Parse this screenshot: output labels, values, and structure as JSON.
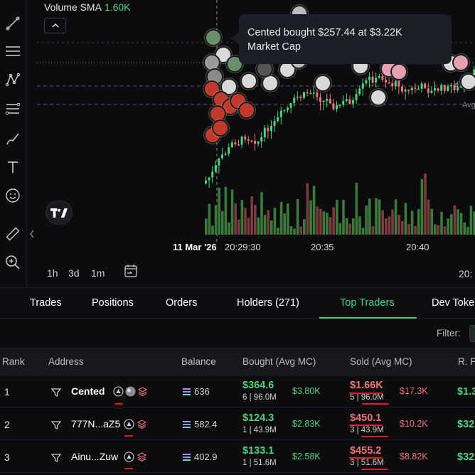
{
  "chart": {
    "volume_label": "Volume SMA",
    "volume_value": "1.60K",
    "tooltip_line1": "Cented bought $257.44 at $3.22K",
    "tooltip_line2": "Market Cap",
    "time_labels": [
      "11 Mar '26",
      "20:29:30",
      "20:35",
      "20:40"
    ],
    "right_time_label": "20:",
    "ranges": [
      "1h",
      "3d",
      "1m"
    ],
    "axis_labels_right": [
      "A",
      "Avg"
    ],
    "toolbar_icons": [
      "trendline-icon",
      "horizontal-lines-icon",
      "pattern-icon",
      "fib-icon",
      "brush-icon",
      "text-icon",
      "emoji-icon",
      "ruler-icon",
      "zoom-icon"
    ],
    "colors": {
      "up": "#4fd27f",
      "down": "#f0727a",
      "vol_up": "#3b7a3b",
      "vol_down": "#7a3b3f",
      "accent": "#3fd98b"
    }
  },
  "tabs": [
    {
      "label": "Trades"
    },
    {
      "label": "Positions"
    },
    {
      "label": "Orders"
    },
    {
      "label": "Holders (271)"
    },
    {
      "label": "Top Traders",
      "active": true
    },
    {
      "label": "Dev Toke"
    }
  ],
  "filter": {
    "label": "Filter:"
  },
  "table": {
    "headers": [
      "Rank",
      "Address",
      "Balance",
      "Bought (Avg MC)",
      "Sold (Avg MC)",
      "R. P"
    ],
    "rows": [
      {
        "rank": "1",
        "address": "Cented",
        "bold": true,
        "balance": "636",
        "bought": "$364.6",
        "bought_sub": "6 | 96.0M",
        "bought_mc": "$3.80K",
        "sold": "$1.66K",
        "sold_sub": "5 | 96.0M",
        "sold_mc": "$17.3K",
        "pnl": "$1.3"
      },
      {
        "rank": "2",
        "address": "777N...aZ5",
        "bold": false,
        "balance": "582.4",
        "bought": "$124.3",
        "bought_sub": "1 | 43.9M",
        "bought_mc": "$2.83K",
        "sold": "$450.1",
        "sold_sub": "3 | 43.9M",
        "sold_mc": "$10.2K",
        "pnl": "$32"
      },
      {
        "rank": "3",
        "address": "Ainu...Zuw",
        "bold": false,
        "balance": "402.9",
        "bought": "$133.1",
        "bought_sub": "1 | 51.6M",
        "bought_mc": "$2.58K",
        "sold": "$455.2",
        "sold_sub": "3 | 51.6M",
        "sold_mc": "$8.82K",
        "pnl": "$32"
      }
    ]
  }
}
